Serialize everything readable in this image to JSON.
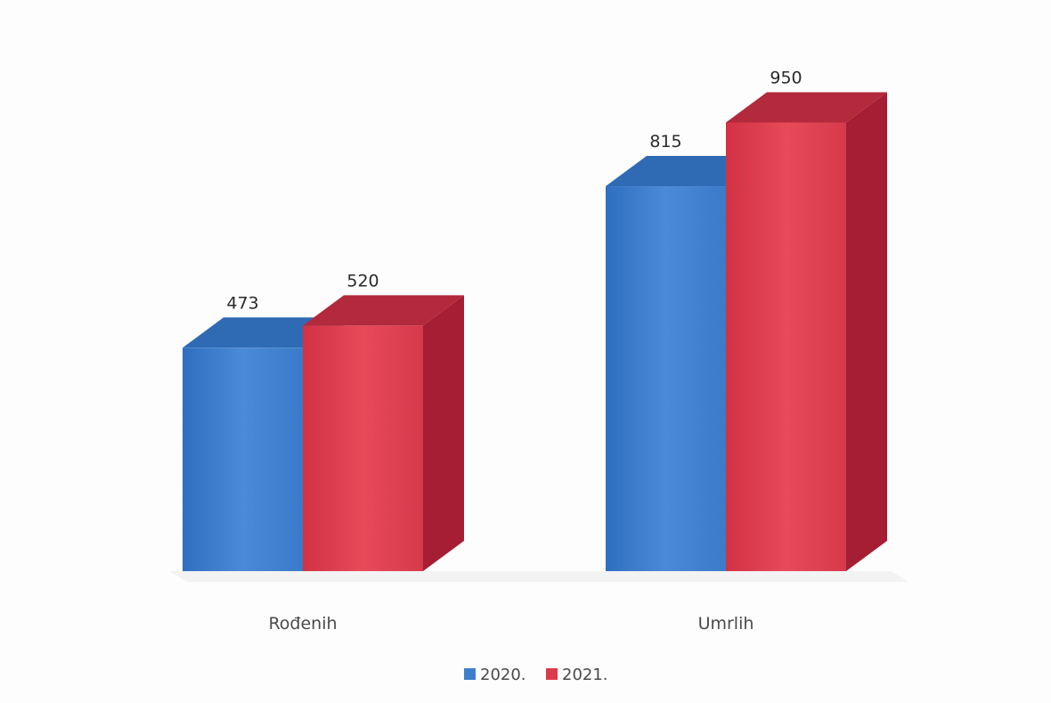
{
  "chart_data": {
    "type": "bar",
    "categories": [
      "Rođenih",
      "Umrlih"
    ],
    "series": [
      {
        "name": "2020.",
        "values": [
          473,
          815
        ],
        "color": "#3d7fcc"
      },
      {
        "name": "2021.",
        "values": [
          520,
          950
        ],
        "color": "#dd3a4b"
      }
    ],
    "title": "",
    "xlabel": "",
    "ylabel": "",
    "ylim": [
      0,
      1000
    ],
    "grid": false,
    "legend": "bottom",
    "style": "3d-column"
  }
}
